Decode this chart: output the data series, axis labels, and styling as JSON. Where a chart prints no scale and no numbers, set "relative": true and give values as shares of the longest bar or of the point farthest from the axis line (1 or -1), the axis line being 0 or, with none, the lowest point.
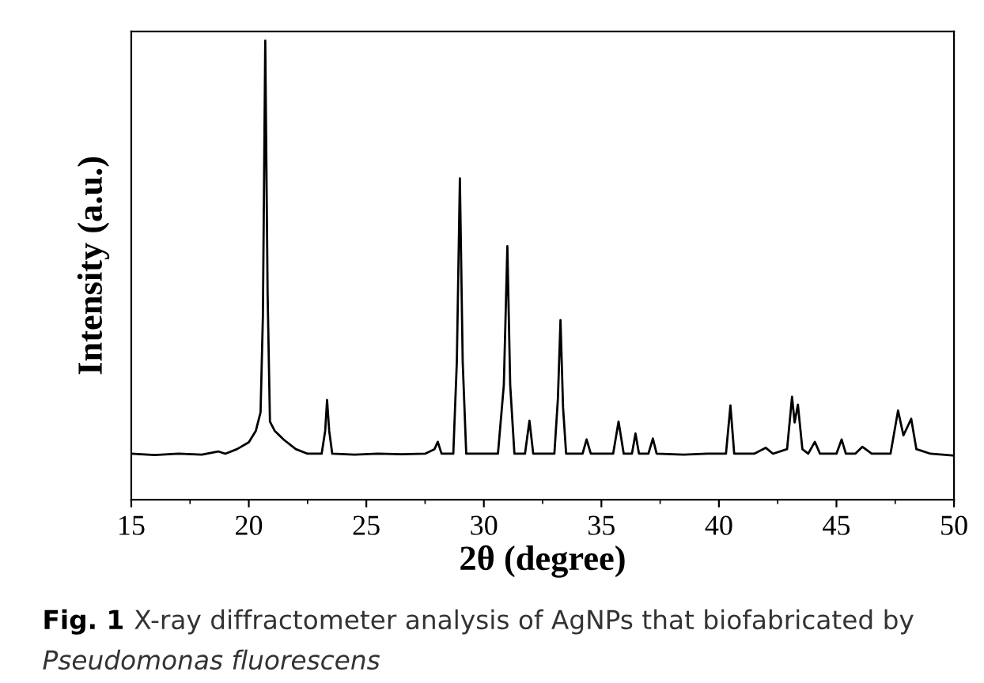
{
  "chart_data": {
    "type": "line",
    "relative": true,
    "xlabel": "2θ (degree)",
    "ylabel": "Intensity (a.u.)",
    "xlim": [
      15,
      50
    ],
    "xticks": [
      15,
      20,
      25,
      30,
      35,
      40,
      45,
      50
    ],
    "grid": false,
    "legend": false,
    "marker": "none",
    "line_style": "solid",
    "tick_labels": "x",
    "annotations": [
      "Fig. 1",
      "X-ray diffractometer analysis of AgNPs that biofabricated by",
      "Pseudomonas fluorescens"
    ],
    "series": [
      {
        "color": "#000000",
        "x": [
          15.0,
          16.0,
          17.0,
          18.0,
          18.7,
          19.0,
          19.5,
          20.0,
          20.3,
          20.5,
          20.6,
          20.7,
          20.8,
          20.9,
          21.1,
          21.5,
          22.0,
          22.5,
          23.1,
          23.25,
          23.33,
          23.42,
          23.55,
          24.5,
          25.5,
          26.5,
          27.5,
          27.9,
          28.04,
          28.2,
          28.7,
          28.85,
          28.98,
          29.1,
          29.25,
          30.0,
          30.6,
          30.85,
          31.0,
          31.12,
          31.3,
          31.75,
          31.94,
          32.1,
          33.0,
          33.15,
          33.26,
          33.37,
          33.5,
          34.2,
          34.37,
          34.55,
          35.5,
          35.73,
          35.95,
          36.3,
          36.45,
          36.6,
          37.0,
          37.19,
          37.35,
          38.5,
          39.5,
          40.3,
          40.49,
          40.65,
          41.5,
          41.99,
          42.3,
          42.9,
          43.11,
          43.22,
          43.36,
          43.55,
          43.8,
          44.08,
          44.3,
          45.0,
          45.22,
          45.4,
          45.8,
          46.1,
          46.5,
          47.3,
          47.62,
          47.85,
          48.18,
          48.4,
          49.0,
          50.0
        ],
        "values": [
          0.1,
          0.097,
          0.1,
          0.098,
          0.105,
          0.1,
          0.11,
          0.125,
          0.15,
          0.19,
          0.4,
          1.0,
          0.45,
          0.17,
          0.15,
          0.13,
          0.11,
          0.1,
          0.1,
          0.15,
          0.217,
          0.15,
          0.1,
          0.098,
          0.1,
          0.099,
          0.1,
          0.11,
          0.126,
          0.1,
          0.1,
          0.3,
          0.7,
          0.3,
          0.1,
          0.1,
          0.1,
          0.25,
          0.552,
          0.25,
          0.1,
          0.1,
          0.172,
          0.1,
          0.1,
          0.22,
          0.391,
          0.2,
          0.1,
          0.1,
          0.131,
          0.1,
          0.1,
          0.17,
          0.1,
          0.1,
          0.144,
          0.1,
          0.1,
          0.133,
          0.1,
          0.098,
          0.1,
          0.1,
          0.205,
          0.1,
          0.1,
          0.113,
          0.1,
          0.11,
          0.224,
          0.168,
          0.207,
          0.11,
          0.1,
          0.126,
          0.1,
          0.1,
          0.131,
          0.1,
          0.1,
          0.115,
          0.1,
          0.1,
          0.194,
          0.14,
          0.176,
          0.11,
          0.1,
          0.096
        ]
      }
    ]
  }
}
